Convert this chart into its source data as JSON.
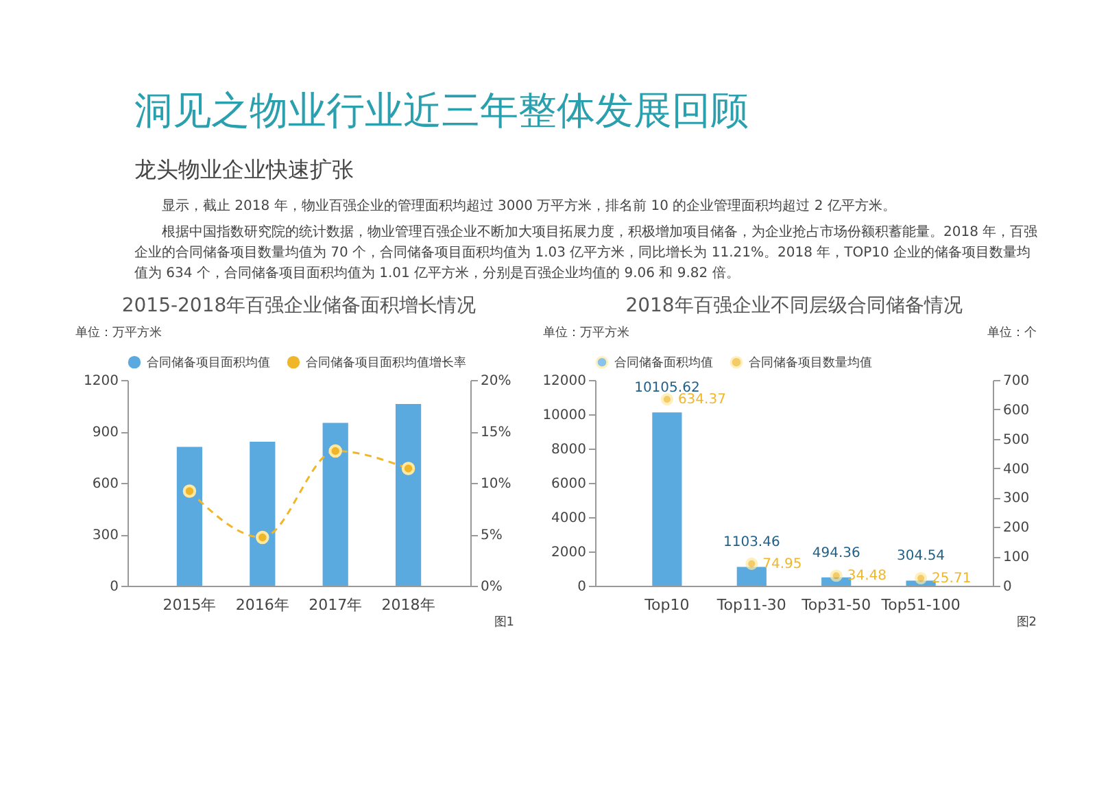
{
  "chart_data": [
    {
      "type": "other",
      "title": "洞见之物业行业近三年整体发展回顾",
      "subtitle": "龙头物业企业快速扩张",
      "annotations": [
        "显示，截止 2018 年，物业百强企业的管理面积均超过 3000 万平方米，排名前 10 的企业管理面积均超过 2 亿平方米。",
        "根据中国指数研究院的统计数据，物业管理百强企业不断加大项目拓展力度，积极增加项目储备，为企业抢占市场份额积蓄能量。2018 年，百强企业的合同储备项目数量均值为 70 个，合同储备项目面积均值为 1.03 亿平方米，同比增长为 11.21%。2018 年，TOP10 企业的储备项目数量均值为 634 个，合同储备项目面积均值为 1.01 亿平方米，分别是百强企业均值的 9.06 和 9.82 倍。"
      ]
    },
    {
      "type": "bar",
      "title": "2015-2018年百强企业储备面积增长情况",
      "ylabel": "单位：万平方米",
      "categories": [
        "2015年",
        "2016年",
        "2017年",
        "2018年"
      ],
      "series": [
        {
          "name": "合同储备项目面积均值",
          "color": "#5aaae0",
          "values": [
            810,
            840,
            950,
            1060
          ]
        },
        {
          "name": "合同储备项目面积均值增长率",
          "type": "line",
          "axis": "y2",
          "color": "#f0b62a",
          "values": [
            9.2,
            4.7,
            13.1,
            11.4
          ]
        }
      ],
      "ylim": [
        0,
        1200
      ],
      "yticks": [
        0,
        300,
        600,
        900,
        1200
      ],
      "y2lim": [
        0,
        20
      ],
      "y2ticks": [
        {
          "value": 0,
          "label": "0%"
        },
        {
          "value": 5,
          "label": "5%"
        },
        {
          "value": 10,
          "label": "10%"
        },
        {
          "value": 15,
          "label": "15%"
        },
        {
          "value": 20,
          "label": "20%"
        }
      ],
      "marker": "circle",
      "line_style": "dashed",
      "legend": "top",
      "grid": false,
      "annotations": [
        "图1"
      ]
    },
    {
      "type": "bar",
      "title": "2018年百强企业不同层级合同储备情况",
      "ylabel": "单位：万平方米",
      "y2label": "单位：个",
      "categories": [
        "Top10",
        "Top11-30",
        "Top31-50",
        "Top51-100"
      ],
      "series": [
        {
          "name": "合同储备面积均值",
          "color": "#5aaae0",
          "values": [
            10105.62,
            1103.46,
            494.36,
            304.54
          ]
        },
        {
          "name": "合同储备项目数量均值",
          "type": "scatter",
          "axis": "y2",
          "color": "#f0b62a",
          "values": [
            634.37,
            74.95,
            34.48,
            25.71
          ]
        }
      ],
      "ylim": [
        0,
        12000
      ],
      "yticks": [
        0,
        2000,
        4000,
        6000,
        8000,
        10000,
        12000
      ],
      "y2lim": [
        0,
        700
      ],
      "y2ticks": [
        0,
        100,
        200,
        300,
        400,
        500,
        600,
        700
      ],
      "marker": "circle",
      "legend": "top",
      "grid": false,
      "data_labels": true,
      "annotations": [
        "图2"
      ]
    }
  ]
}
